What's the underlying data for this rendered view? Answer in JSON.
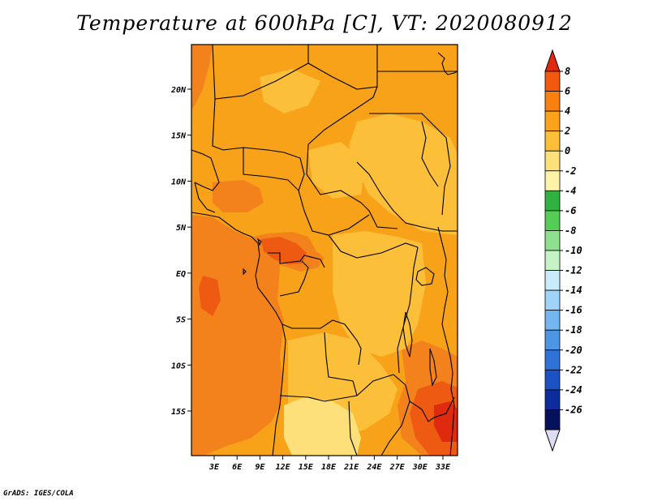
{
  "title": "Temperature at 600hPa [C], VT: 2020080912",
  "credit": "GrADS: IGES/COLA",
  "map": {
    "x_ticks": [
      "3E",
      "6E",
      "9E",
      "12E",
      "15E",
      "18E",
      "21E",
      "24E",
      "27E",
      "30E",
      "33E"
    ],
    "y_ticks": [
      "20N",
      "15N",
      "10N",
      "5N",
      "EQ",
      "5S",
      "10S",
      "15S"
    ],
    "lon_range": [
      0,
      35
    ],
    "lat_range": [
      -20,
      25
    ]
  },
  "colorbar": {
    "labels": [
      "8",
      "6",
      "4",
      "2",
      "0",
      "-2",
      "-4",
      "-6",
      "-8",
      "-10",
      "-12",
      "-14",
      "-16",
      "-18",
      "-20",
      "-22",
      "-24",
      "-26"
    ],
    "colors": [
      "#e02a10",
      "#f2580e",
      "#f8800f",
      "#faa21a",
      "#fbbf3a",
      "#fde07a",
      "#fdf3a8",
      "#2fb240",
      "#55cd55",
      "#8de08d",
      "#c6f3c6",
      "#c9ecfa",
      "#9fd4f8",
      "#74b6f0",
      "#4d96e6",
      "#2e74d8",
      "#1b52c4",
      "#0b2c9a",
      "#06115c",
      "#dcdcf2"
    ]
  }
}
